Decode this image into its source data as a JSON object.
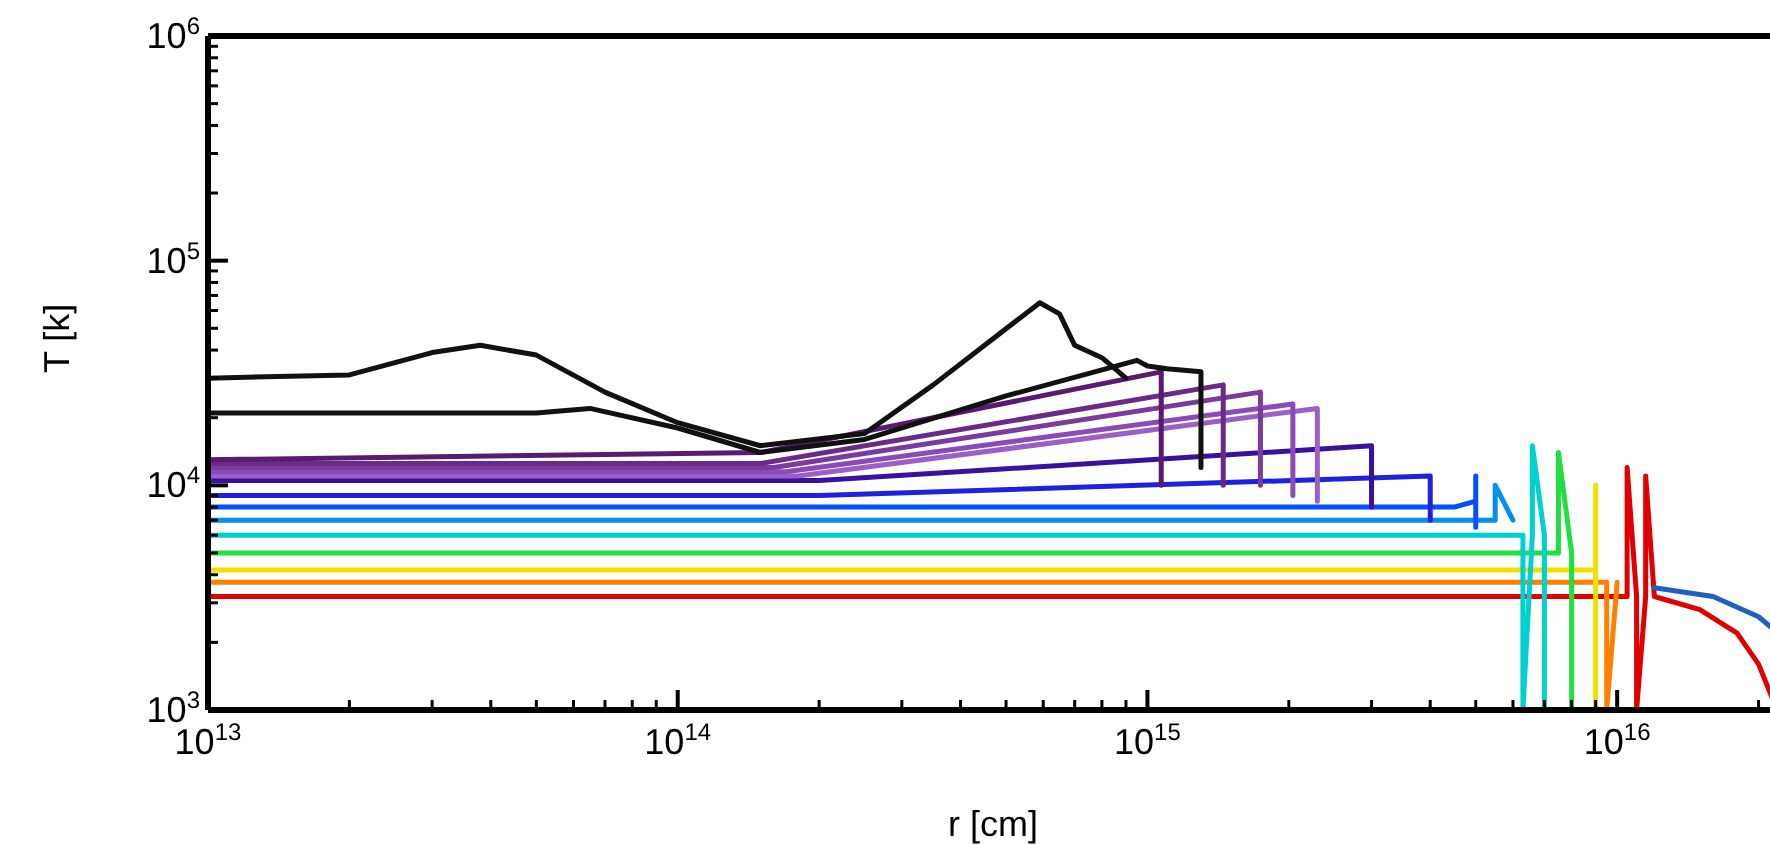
{
  "chart_data": {
    "type": "line",
    "xlabel": "r [cm]",
    "ylabel": "T [k]",
    "log": "xy",
    "xlim": [
      10000000000000.0,
      2.2e+16
    ],
    "ylim": [
      1000,
      1000000
    ],
    "xticks": [
      {
        "value": 10000000000000.0,
        "label": "10$^{13}$"
      },
      {
        "value": 20000000000000.0,
        "label": null
      },
      {
        "value": 30000000000000.0,
        "label": null
      },
      {
        "value": 40000000000000.0,
        "label": null
      },
      {
        "value": 50000000000000.0,
        "label": null
      },
      {
        "value": 60000000000000.0,
        "label": null
      },
      {
        "value": 70000000000000.0,
        "label": null
      },
      {
        "value": 80000000000000.0,
        "label": null
      },
      {
        "value": 90000000000000.0,
        "label": null
      },
      {
        "value": 100000000000000.0,
        "label": "10$^{14}$"
      },
      {
        "value": 200000000000000.0,
        "label": null
      },
      {
        "value": 300000000000000.0,
        "label": null
      },
      {
        "value": 400000000000000.0,
        "label": null
      },
      {
        "value": 500000000000000.0,
        "label": null
      },
      {
        "value": 600000000000000.0,
        "label": null
      },
      {
        "value": 700000000000000.0,
        "label": null
      },
      {
        "value": 800000000000000.0,
        "label": null
      },
      {
        "value": 900000000000000.0,
        "label": null
      },
      {
        "value": 1000000000000000.0,
        "label": "10$^{15}$"
      },
      {
        "value": 2000000000000000.0,
        "label": null
      },
      {
        "value": 3000000000000000.0,
        "label": null
      },
      {
        "value": 4000000000000000.0,
        "label": null
      },
      {
        "value": 5000000000000000.0,
        "label": null
      },
      {
        "value": 6000000000000000.0,
        "label": null
      },
      {
        "value": 7000000000000000.0,
        "label": null
      },
      {
        "value": 8000000000000000.0,
        "label": null
      },
      {
        "value": 9000000000000000.0,
        "label": null
      },
      {
        "value": 1e+16,
        "label": "10$^{16}$"
      },
      {
        "value": 2e+16,
        "label": null
      }
    ],
    "yticks": [
      {
        "value": 1000,
        "label": "10$^{3}$"
      },
      {
        "value": 2000,
        "label": null
      },
      {
        "value": 3000,
        "label": null
      },
      {
        "value": 4000,
        "label": null
      },
      {
        "value": 5000,
        "label": null
      },
      {
        "value": 6000,
        "label": null
      },
      {
        "value": 7000,
        "label": null
      },
      {
        "value": 8000,
        "label": null
      },
      {
        "value": 9000,
        "label": null
      },
      {
        "value": 10000,
        "label": "10$^{4}$"
      },
      {
        "value": 20000,
        "label": null
      },
      {
        "value": 30000,
        "label": null
      },
      {
        "value": 40000,
        "label": null
      },
      {
        "value": 50000,
        "label": null
      },
      {
        "value": 60000,
        "label": null
      },
      {
        "value": 70000,
        "label": null
      },
      {
        "value": 80000,
        "label": null
      },
      {
        "value": 90000,
        "label": null
      },
      {
        "value": 100000,
        "label": "10$^{5}$"
      },
      {
        "value": 200000,
        "label": null
      },
      {
        "value": 300000,
        "label": null
      },
      {
        "value": 400000,
        "label": null
      },
      {
        "value": 500000,
        "label": null
      },
      {
        "value": 600000,
        "label": null
      },
      {
        "value": 700000,
        "label": null
      },
      {
        "value": 800000,
        "label": null
      },
      {
        "value": 900000,
        "label": null
      },
      {
        "value": 1000000,
        "label": "10$^{6}$"
      }
    ],
    "series": [
      {
        "color": "#e00000",
        "x": [
          10000000000000.0,
          1.05e+16,
          1.05e+16,
          1.1e+16,
          1.1e+16,
          1.15e+16,
          1.15e+16,
          1.2e+16,
          1.5e+16,
          1.8e+16,
          2e+16,
          2.15e+16
        ],
        "values": [
          3200,
          3200,
          12000,
          3200,
          1000,
          3200,
          11000,
          3200,
          2800,
          2200,
          1600,
          1100
        ]
      },
      {
        "color": "#ff8000",
        "x": [
          10000000000000.0,
          9500000000000000.0,
          9500000000000000.0,
          1e+16
        ],
        "values": [
          3700,
          3700,
          1000,
          3700
        ]
      },
      {
        "color": "#f0e000",
        "x": [
          10000000000000.0,
          9000000000000000.0,
          9000000000000000.0,
          9000000000000000.0
        ],
        "values": [
          4200,
          4200,
          10000,
          1000
        ]
      },
      {
        "color": "#20e040",
        "x": [
          10000000000000.0,
          7500000000000000.0,
          7500000000000000.0,
          8000000000000000.0,
          8000000000000000.0
        ],
        "values": [
          5000,
          5000,
          14000,
          5000,
          1000
        ]
      },
      {
        "color": "#00d0d0",
        "x": [
          10000000000000.0,
          6300000000000000.0,
          6300000000000000.0,
          6600000000000000.0,
          6600000000000000.0,
          7000000000000000.0,
          7000000000000000.0
        ],
        "values": [
          6000,
          6000,
          1000,
          6000,
          15000,
          6000,
          1000
        ]
      },
      {
        "color": "#0090f0",
        "x": [
          10000000000000.0,
          5500000000000000.0,
          5500000000000000.0,
          6000000000000000.0
        ],
        "values": [
          7000,
          7000,
          10000,
          7000
        ]
      },
      {
        "color": "#0050ff",
        "x": [
          10000000000000.0,
          4500000000000000.0,
          5000000000000000.0,
          5000000000000000.0,
          5000000000000000.0
        ],
        "values": [
          8000,
          8000,
          8500,
          11000,
          6500
        ]
      },
      {
        "color": "#2020e0",
        "x": [
          10000000000000.0,
          200000000000000.0,
          4000000000000000.0,
          4000000000000000.0
        ],
        "values": [
          9000,
          9000,
          11000,
          7000
        ]
      },
      {
        "color": "#3a10a0",
        "x": [
          10000000000000.0,
          200000000000000.0,
          3000000000000000.0,
          3000000000000000.0
        ],
        "values": [
          10500,
          10500,
          15000,
          8000
        ]
      },
      {
        "color": "#9a60c8",
        "x": [
          10000000000000.0,
          180000000000000.0,
          2300000000000000.0,
          2300000000000000.0
        ],
        "values": [
          11000,
          11000,
          22000,
          8500
        ]
      },
      {
        "color": "#8a4ab8",
        "x": [
          10000000000000.0,
          170000000000000.0,
          2040000000000000.0,
          2040000000000000.0
        ],
        "values": [
          11500,
          11500,
          23000,
          9000
        ]
      },
      {
        "color": "#7a3aa0",
        "x": [
          10000000000000.0,
          160000000000000.0,
          1740000000000000.0,
          1740000000000000.0
        ],
        "values": [
          12000,
          12000,
          26000,
          10000
        ]
      },
      {
        "color": "#6a2a88",
        "x": [
          10000000000000.0,
          150000000000000.0,
          1450000000000000.0,
          1450000000000000.0
        ],
        "values": [
          12500,
          12500,
          28000,
          10000
        ]
      },
      {
        "color": "#5a1a70",
        "x": [
          10000000000000.0,
          150000000000000.0,
          1070000000000000.0,
          1070000000000000.0
        ],
        "values": [
          13000,
          14000,
          32000,
          10000
        ]
      },
      {
        "color": "#2060c0",
        "x": [
          1.2e+16,
          1.6e+16,
          2e+16,
          2.2e+16
        ],
        "values": [
          3500,
          3200,
          2600,
          2200
        ]
      },
      {
        "color": "#111111",
        "x": [
          10000000000000.0,
          50000000000000.0,
          65000000000000.0,
          100000000000000.0,
          150000000000000.0,
          250000000000000.0,
          500000000000000.0,
          950000000000000.0,
          1000000000000000.0,
          1100000000000000.0,
          1300000000000000.0,
          1300000000000000.0
        ],
        "values": [
          21000,
          21000,
          22000,
          18000,
          14000,
          16000,
          25000,
          36000,
          34000,
          33000,
          32000,
          12000
        ]
      },
      {
        "color": "#111111",
        "x": [
          10000000000000.0,
          20000000000000.0,
          30000000000000.0,
          38000000000000.0,
          50000000000000.0,
          70000000000000.0,
          100000000000000.0,
          150000000000000.0,
          250000000000000.0,
          350000000000000.0,
          590000000000000.0,
          650000000000000.0,
          700000000000000.0,
          800000000000000.0,
          900000000000000.0
        ],
        "values": [
          30000,
          31000,
          39000,
          42000,
          38000,
          26000,
          19000,
          15000,
          17000,
          28000,
          65000,
          58000,
          42000,
          37000,
          30000
        ]
      }
    ]
  }
}
